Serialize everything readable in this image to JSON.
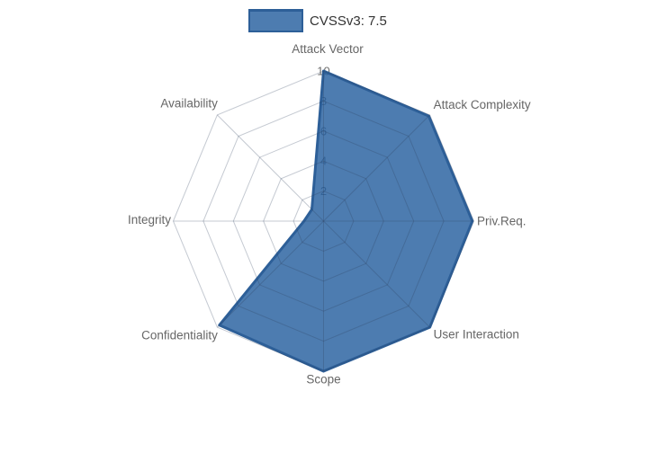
{
  "legend": {
    "label": "CVSSv3: 7.5"
  },
  "chart_data": {
    "type": "radar",
    "title": "",
    "categories": [
      "Attack Vector",
      "Attack Complexity",
      "Priv.Req.",
      "User Interaction",
      "Scope",
      "Confidentiality",
      "Integrity",
      "Availability"
    ],
    "series": [
      {
        "name": "CVSSv3: 7.5",
        "values": [
          10,
          9.9,
          9.9,
          10,
          10,
          9.8,
          1.3,
          1.1
        ]
      }
    ],
    "radial_ticks": [
      "2",
      "4",
      "6",
      "8",
      "10"
    ],
    "range": [
      0,
      10
    ],
    "grid": true,
    "legend_position": "top",
    "colors": {
      "fill": "#4d7cb0",
      "fill_rgba": "rgba(38,95,159,0.82)",
      "border": "#2d5f98",
      "grid_line": "rgba(45,65,95,0.28)",
      "axis_label": "#666666",
      "tick_label": "#6e6e6e",
      "tick_backdrop": "rgba(255,255,255,0.78)",
      "legend_text": "#333333"
    }
  }
}
